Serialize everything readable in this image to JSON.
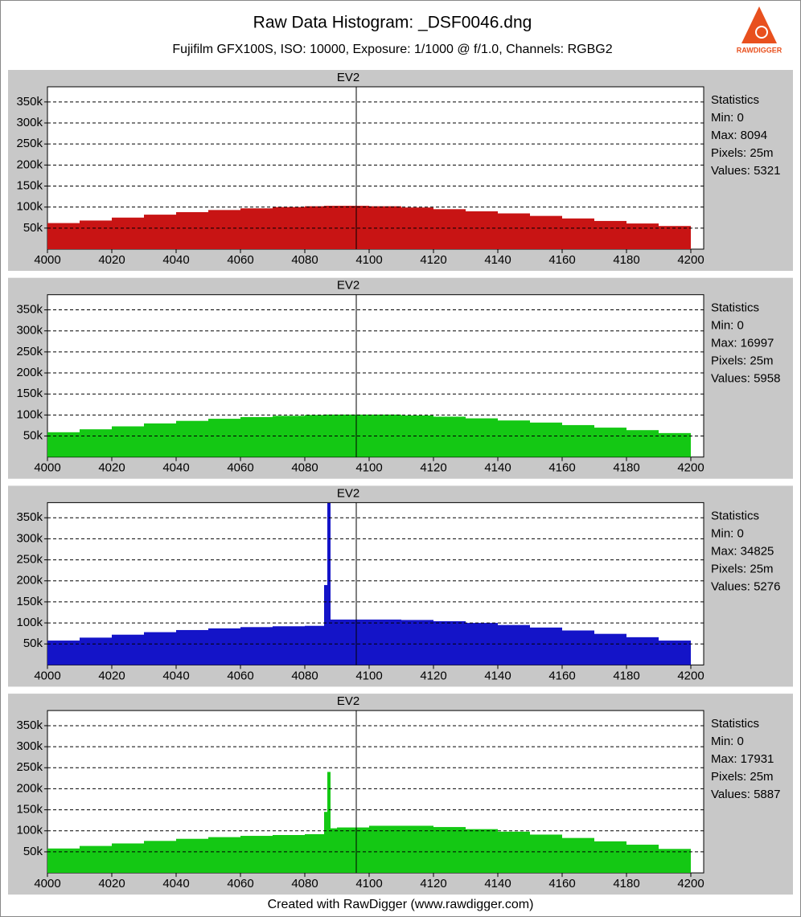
{
  "title": "Raw Data Histogram: _DSF0046.dng",
  "subtitle": "Fujifilm GFX100S, ISO: 10000, Exposure: 1/1000 @ f/1.0, Channels: RGBG2",
  "footer": "Created with RawDigger (www.rawdigger.com)",
  "logo": "RAWDIGGER",
  "chart_data": [
    {
      "type": "histogram",
      "color": "#c81414",
      "marker": 4096,
      "marker_label": "EV2",
      "stats": [
        "Statistics",
        "Min: 0",
        "Max: 8094",
        "Pixels: 25m",
        "Values: 5321"
      ],
      "bins": [
        4000,
        4010,
        4020,
        4030,
        4040,
        4050,
        4060,
        4070,
        4080,
        4086,
        4087,
        4088,
        4090,
        4100,
        4110,
        4120,
        4130,
        4140,
        4150,
        4160,
        4170,
        4180,
        4190,
        4200
      ],
      "values": [
        62000,
        68000,
        75000,
        82000,
        88000,
        93000,
        97000,
        100000,
        102000,
        103000,
        103000,
        103000,
        103000,
        102000,
        99000,
        95000,
        90000,
        85000,
        79000,
        73000,
        67000,
        61000,
        55000
      ],
      "xlim": [
        4000,
        4204
      ],
      "xticks": [
        4000,
        4020,
        4040,
        4060,
        4080,
        4100,
        4120,
        4140,
        4160,
        4180,
        4200
      ],
      "ylim": [
        0,
        386000
      ],
      "yticks": [
        {
          "value": 50000,
          "label": "50k"
        },
        {
          "value": 100000,
          "label": "100k"
        },
        {
          "value": 150000,
          "label": "150k"
        },
        {
          "value": 200000,
          "label": "200k"
        },
        {
          "value": 250000,
          "label": "250k"
        },
        {
          "value": 300000,
          "label": "300k"
        },
        {
          "value": 350000,
          "label": "350k"
        }
      ],
      "grid": true
    },
    {
      "type": "histogram",
      "color": "#14c814",
      "marker": 4096,
      "marker_label": "EV2",
      "stats": [
        "Statistics",
        "Min: 0",
        "Max: 16997",
        "Pixels: 25m",
        "Values: 5958"
      ],
      "bins": [
        4000,
        4010,
        4020,
        4030,
        4040,
        4050,
        4060,
        4070,
        4080,
        4086,
        4087,
        4088,
        4090,
        4100,
        4110,
        4120,
        4130,
        4140,
        4150,
        4160,
        4170,
        4180,
        4190,
        4200
      ],
      "values": [
        59000,
        66000,
        73000,
        80000,
        86000,
        91000,
        95000,
        98000,
        100000,
        101000,
        101000,
        101000,
        101000,
        101000,
        99000,
        96000,
        92000,
        87000,
        82000,
        76000,
        70000,
        64000,
        57000
      ],
      "xlim": [
        4000,
        4204
      ],
      "xticks": [
        4000,
        4020,
        4040,
        4060,
        4080,
        4100,
        4120,
        4140,
        4160,
        4180,
        4200
      ],
      "ylim": [
        0,
        386000
      ],
      "yticks": [
        {
          "value": 50000,
          "label": "50k"
        },
        {
          "value": 100000,
          "label": "100k"
        },
        {
          "value": 150000,
          "label": "150k"
        },
        {
          "value": 200000,
          "label": "200k"
        },
        {
          "value": 250000,
          "label": "250k"
        },
        {
          "value": 300000,
          "label": "300k"
        },
        {
          "value": 350000,
          "label": "350k"
        }
      ],
      "grid": true
    },
    {
      "type": "histogram",
      "color": "#1414c8",
      "marker": 4096,
      "marker_label": "EV2",
      "stats": [
        "Statistics",
        "Min: 0",
        "Max: 34825",
        "Pixels: 25m",
        "Values: 5276"
      ],
      "bins": [
        4000,
        4010,
        4020,
        4030,
        4040,
        4050,
        4060,
        4070,
        4080,
        4086,
        4087,
        4088,
        4090,
        4100,
        4110,
        4120,
        4130,
        4140,
        4150,
        4160,
        4170,
        4180,
        4190,
        4200
      ],
      "values": [
        58000,
        65000,
        72000,
        78000,
        83000,
        87000,
        90000,
        92000,
        93000,
        190000,
        385000,
        108000,
        108000,
        108000,
        107000,
        104000,
        100000,
        95000,
        89000,
        82000,
        74000,
        66000,
        58000
      ],
      "xlim": [
        4000,
        4204
      ],
      "xticks": [
        4000,
        4020,
        4040,
        4060,
        4080,
        4100,
        4120,
        4140,
        4160,
        4180,
        4200
      ],
      "ylim": [
        0,
        386000
      ],
      "yticks": [
        {
          "value": 50000,
          "label": "50k"
        },
        {
          "value": 100000,
          "label": "100k"
        },
        {
          "value": 150000,
          "label": "150k"
        },
        {
          "value": 200000,
          "label": "200k"
        },
        {
          "value": 250000,
          "label": "250k"
        },
        {
          "value": 300000,
          "label": "300k"
        },
        {
          "value": 350000,
          "label": "350k"
        }
      ],
      "grid": true
    },
    {
      "type": "histogram",
      "color": "#14c814",
      "marker": 4096,
      "marker_label": "EV2",
      "stats": [
        "Statistics",
        "Min: 0",
        "Max: 17931",
        "Pixels: 25m",
        "Values: 5887"
      ],
      "bins": [
        4000,
        4010,
        4020,
        4030,
        4040,
        4050,
        4060,
        4070,
        4080,
        4086,
        4087,
        4088,
        4090,
        4100,
        4110,
        4120,
        4130,
        4140,
        4150,
        4160,
        4170,
        4180,
        4190,
        4200
      ],
      "values": [
        58000,
        64000,
        70000,
        76000,
        81000,
        85000,
        88000,
        90000,
        92000,
        145000,
        240000,
        106000,
        108000,
        112000,
        112000,
        109000,
        104000,
        98000,
        91000,
        83000,
        75000,
        67000,
        57000
      ],
      "xlim": [
        4000,
        4204
      ],
      "xticks": [
        4000,
        4020,
        4040,
        4060,
        4080,
        4100,
        4120,
        4140,
        4160,
        4180,
        4200
      ],
      "ylim": [
        0,
        386000
      ],
      "yticks": [
        {
          "value": 50000,
          "label": "50k"
        },
        {
          "value": 100000,
          "label": "100k"
        },
        {
          "value": 150000,
          "label": "150k"
        },
        {
          "value": 200000,
          "label": "200k"
        },
        {
          "value": 250000,
          "label": "250k"
        },
        {
          "value": 300000,
          "label": "300k"
        },
        {
          "value": 350000,
          "label": "350k"
        }
      ],
      "grid": true
    }
  ]
}
